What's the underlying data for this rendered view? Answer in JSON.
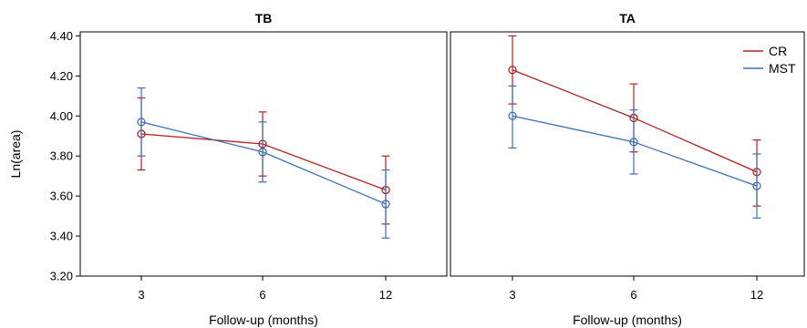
{
  "chart_data": [
    {
      "type": "line",
      "title": "TB",
      "xlabel": "Follow-up (months)",
      "ylabel": "Ln(area)",
      "categories": [
        "3",
        "6",
        "12"
      ],
      "yticks": [
        "3.20",
        "3.40",
        "3.60",
        "3.80",
        "4.00",
        "4.20",
        "4.40"
      ],
      "ylim": [
        3.2,
        4.42
      ],
      "grid": false,
      "series": [
        {
          "name": "CR",
          "color": "#b22222",
          "values": [
            3.91,
            3.86,
            3.63
          ],
          "lower": [
            3.73,
            3.7,
            3.46
          ],
          "upper": [
            4.09,
            4.02,
            3.8
          ]
        },
        {
          "name": "MST",
          "color": "#3e6fb0",
          "values": [
            3.97,
            3.82,
            3.56
          ],
          "lower": [
            3.8,
            3.67,
            3.39
          ],
          "upper": [
            4.14,
            3.97,
            3.73
          ]
        }
      ]
    },
    {
      "type": "line",
      "title": "TA",
      "xlabel": "Follow-up (months)",
      "ylabel": "",
      "categories": [
        "3",
        "6",
        "12"
      ],
      "ylim": [
        3.2,
        4.42
      ],
      "grid": false,
      "legend": "top-right",
      "series": [
        {
          "name": "CR",
          "color": "#b22222",
          "values": [
            4.23,
            3.99,
            3.72
          ],
          "lower": [
            4.06,
            3.82,
            3.55
          ],
          "upper": [
            4.4,
            4.16,
            3.88
          ]
        },
        {
          "name": "MST",
          "color": "#3e6fb0",
          "values": [
            4.0,
            3.87,
            3.65
          ],
          "lower": [
            3.84,
            3.71,
            3.49
          ],
          "upper": [
            4.15,
            4.03,
            3.81
          ]
        }
      ]
    }
  ]
}
